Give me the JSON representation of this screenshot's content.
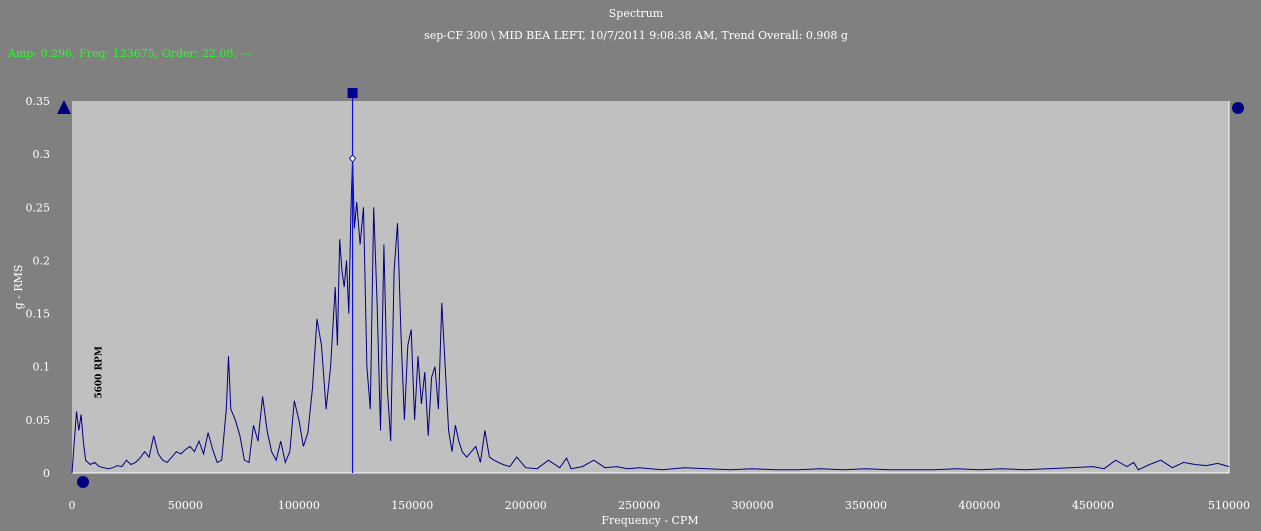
{
  "chart_data": {
    "type": "line",
    "title": "Spectrum",
    "subtitle": "sep-CF 300 \\ MID BEA LEFT, 10/7/2011 9:08:38 AM, Trend Overall: 0.908 g",
    "cursor_readout": "Amp: 0.296, Freq: 123675, Order: 22.08, ---",
    "xlabel": "Frequency - CPM",
    "ylabel": "g - RMS",
    "xlim": [
      0,
      510000
    ],
    "ylim": [
      0,
      0.35
    ],
    "x_ticks": [
      0,
      50000,
      100000,
      150000,
      200000,
      250000,
      300000,
      350000,
      400000,
      450000,
      510000
    ],
    "x_tick_labels": [
      "0",
      "50000",
      "100000",
      "150000",
      "200000",
      "250000",
      "300000",
      "350000",
      "400000",
      "450000",
      "510000"
    ],
    "y_ticks": [
      0,
      0.05,
      0.1,
      0.15,
      0.2,
      0.25,
      0.3,
      0.35
    ],
    "y_tick_labels": [
      "0",
      "0.05",
      "0.1",
      "0.15",
      "0.2",
      "0.25",
      "0.3",
      "0.35"
    ],
    "annotation": {
      "label": "5600 RPM",
      "x": 5600
    },
    "cursor": {
      "x": 123675,
      "y": 0.296
    },
    "grid": false,
    "colors": {
      "plot_bg": "#c0c0c0",
      "frame_bg": "#808080",
      "line": "#000080",
      "cursor_text": "#22ff22"
    },
    "series": [
      {
        "x": [
          0,
          2000,
          3000,
          4000,
          5000,
          6000,
          7000,
          8000,
          10000,
          12000,
          14000,
          16000,
          18000,
          20000,
          22000,
          24000,
          26000,
          28000,
          30000,
          32000,
          34000,
          36000,
          38000,
          40000,
          42000,
          44000,
          46000,
          48000,
          50000,
          52000,
          54000,
          56000,
          58000,
          60000,
          62000,
          64000,
          66000,
          68000,
          69000,
          70000,
          72000,
          74000,
          76000,
          78000,
          80000,
          82000,
          84000,
          86000,
          88000,
          90000,
          92000,
          94000,
          96000,
          98000,
          100000,
          102000,
          104000,
          106000,
          108000,
          110000,
          112000,
          114000,
          116000,
          117000,
          118000,
          119000,
          120000,
          121000,
          122000,
          123000,
          123675,
          124500,
          125500,
          127000,
          128500,
          130000,
          131500,
          133000,
          134500,
          136000,
          137500,
          139000,
          140500,
          142000,
          143500,
          145000,
          146500,
          148000,
          149500,
          151000,
          152500,
          154000,
          155500,
          157000,
          158500,
          160000,
          161500,
          163000,
          164500,
          166000,
          167500,
          169000,
          170500,
          172000,
          174000,
          176000,
          178000,
          180000,
          182000,
          184000,
          186000,
          188000,
          190000,
          193000,
          196000,
          200000,
          205000,
          210000,
          215000,
          218000,
          220000,
          225000,
          230000,
          235000,
          240000,
          245000,
          250000,
          260000,
          270000,
          280000,
          290000,
          300000,
          310000,
          320000,
          330000,
          340000,
          350000,
          360000,
          370000,
          380000,
          390000,
          400000,
          410000,
          420000,
          430000,
          440000,
          450000,
          455000,
          460000,
          465000,
          468000,
          470000,
          475000,
          480000,
          485000,
          490000,
          495000,
          500000,
          505000,
          510000
        ],
        "y": [
          0.0,
          0.058,
          0.04,
          0.055,
          0.03,
          0.012,
          0.01,
          0.008,
          0.01,
          0.006,
          0.005,
          0.004,
          0.005,
          0.007,
          0.006,
          0.012,
          0.008,
          0.01,
          0.014,
          0.02,
          0.015,
          0.035,
          0.018,
          0.012,
          0.01,
          0.015,
          0.02,
          0.018,
          0.022,
          0.025,
          0.02,
          0.03,
          0.018,
          0.038,
          0.022,
          0.01,
          0.012,
          0.06,
          0.11,
          0.06,
          0.05,
          0.035,
          0.012,
          0.01,
          0.045,
          0.03,
          0.072,
          0.04,
          0.02,
          0.012,
          0.03,
          0.01,
          0.02,
          0.068,
          0.05,
          0.025,
          0.038,
          0.08,
          0.145,
          0.12,
          0.06,
          0.1,
          0.175,
          0.12,
          0.22,
          0.19,
          0.175,
          0.2,
          0.15,
          0.25,
          0.296,
          0.23,
          0.255,
          0.215,
          0.25,
          0.1,
          0.06,
          0.25,
          0.16,
          0.04,
          0.215,
          0.08,
          0.03,
          0.19,
          0.235,
          0.13,
          0.05,
          0.12,
          0.135,
          0.05,
          0.11,
          0.065,
          0.095,
          0.035,
          0.09,
          0.1,
          0.06,
          0.16,
          0.1,
          0.04,
          0.02,
          0.045,
          0.03,
          0.02,
          0.015,
          0.02,
          0.025,
          0.01,
          0.04,
          0.015,
          0.012,
          0.01,
          0.008,
          0.006,
          0.015,
          0.005,
          0.004,
          0.012,
          0.005,
          0.014,
          0.004,
          0.006,
          0.012,
          0.005,
          0.006,
          0.004,
          0.005,
          0.003,
          0.005,
          0.004,
          0.003,
          0.004,
          0.003,
          0.003,
          0.004,
          0.003,
          0.004,
          0.003,
          0.003,
          0.003,
          0.004,
          0.003,
          0.004,
          0.003,
          0.004,
          0.005,
          0.006,
          0.004,
          0.012,
          0.006,
          0.01,
          0.003,
          0.008,
          0.012,
          0.005,
          0.01,
          0.008,
          0.007,
          0.009,
          0.006
        ]
      }
    ]
  }
}
